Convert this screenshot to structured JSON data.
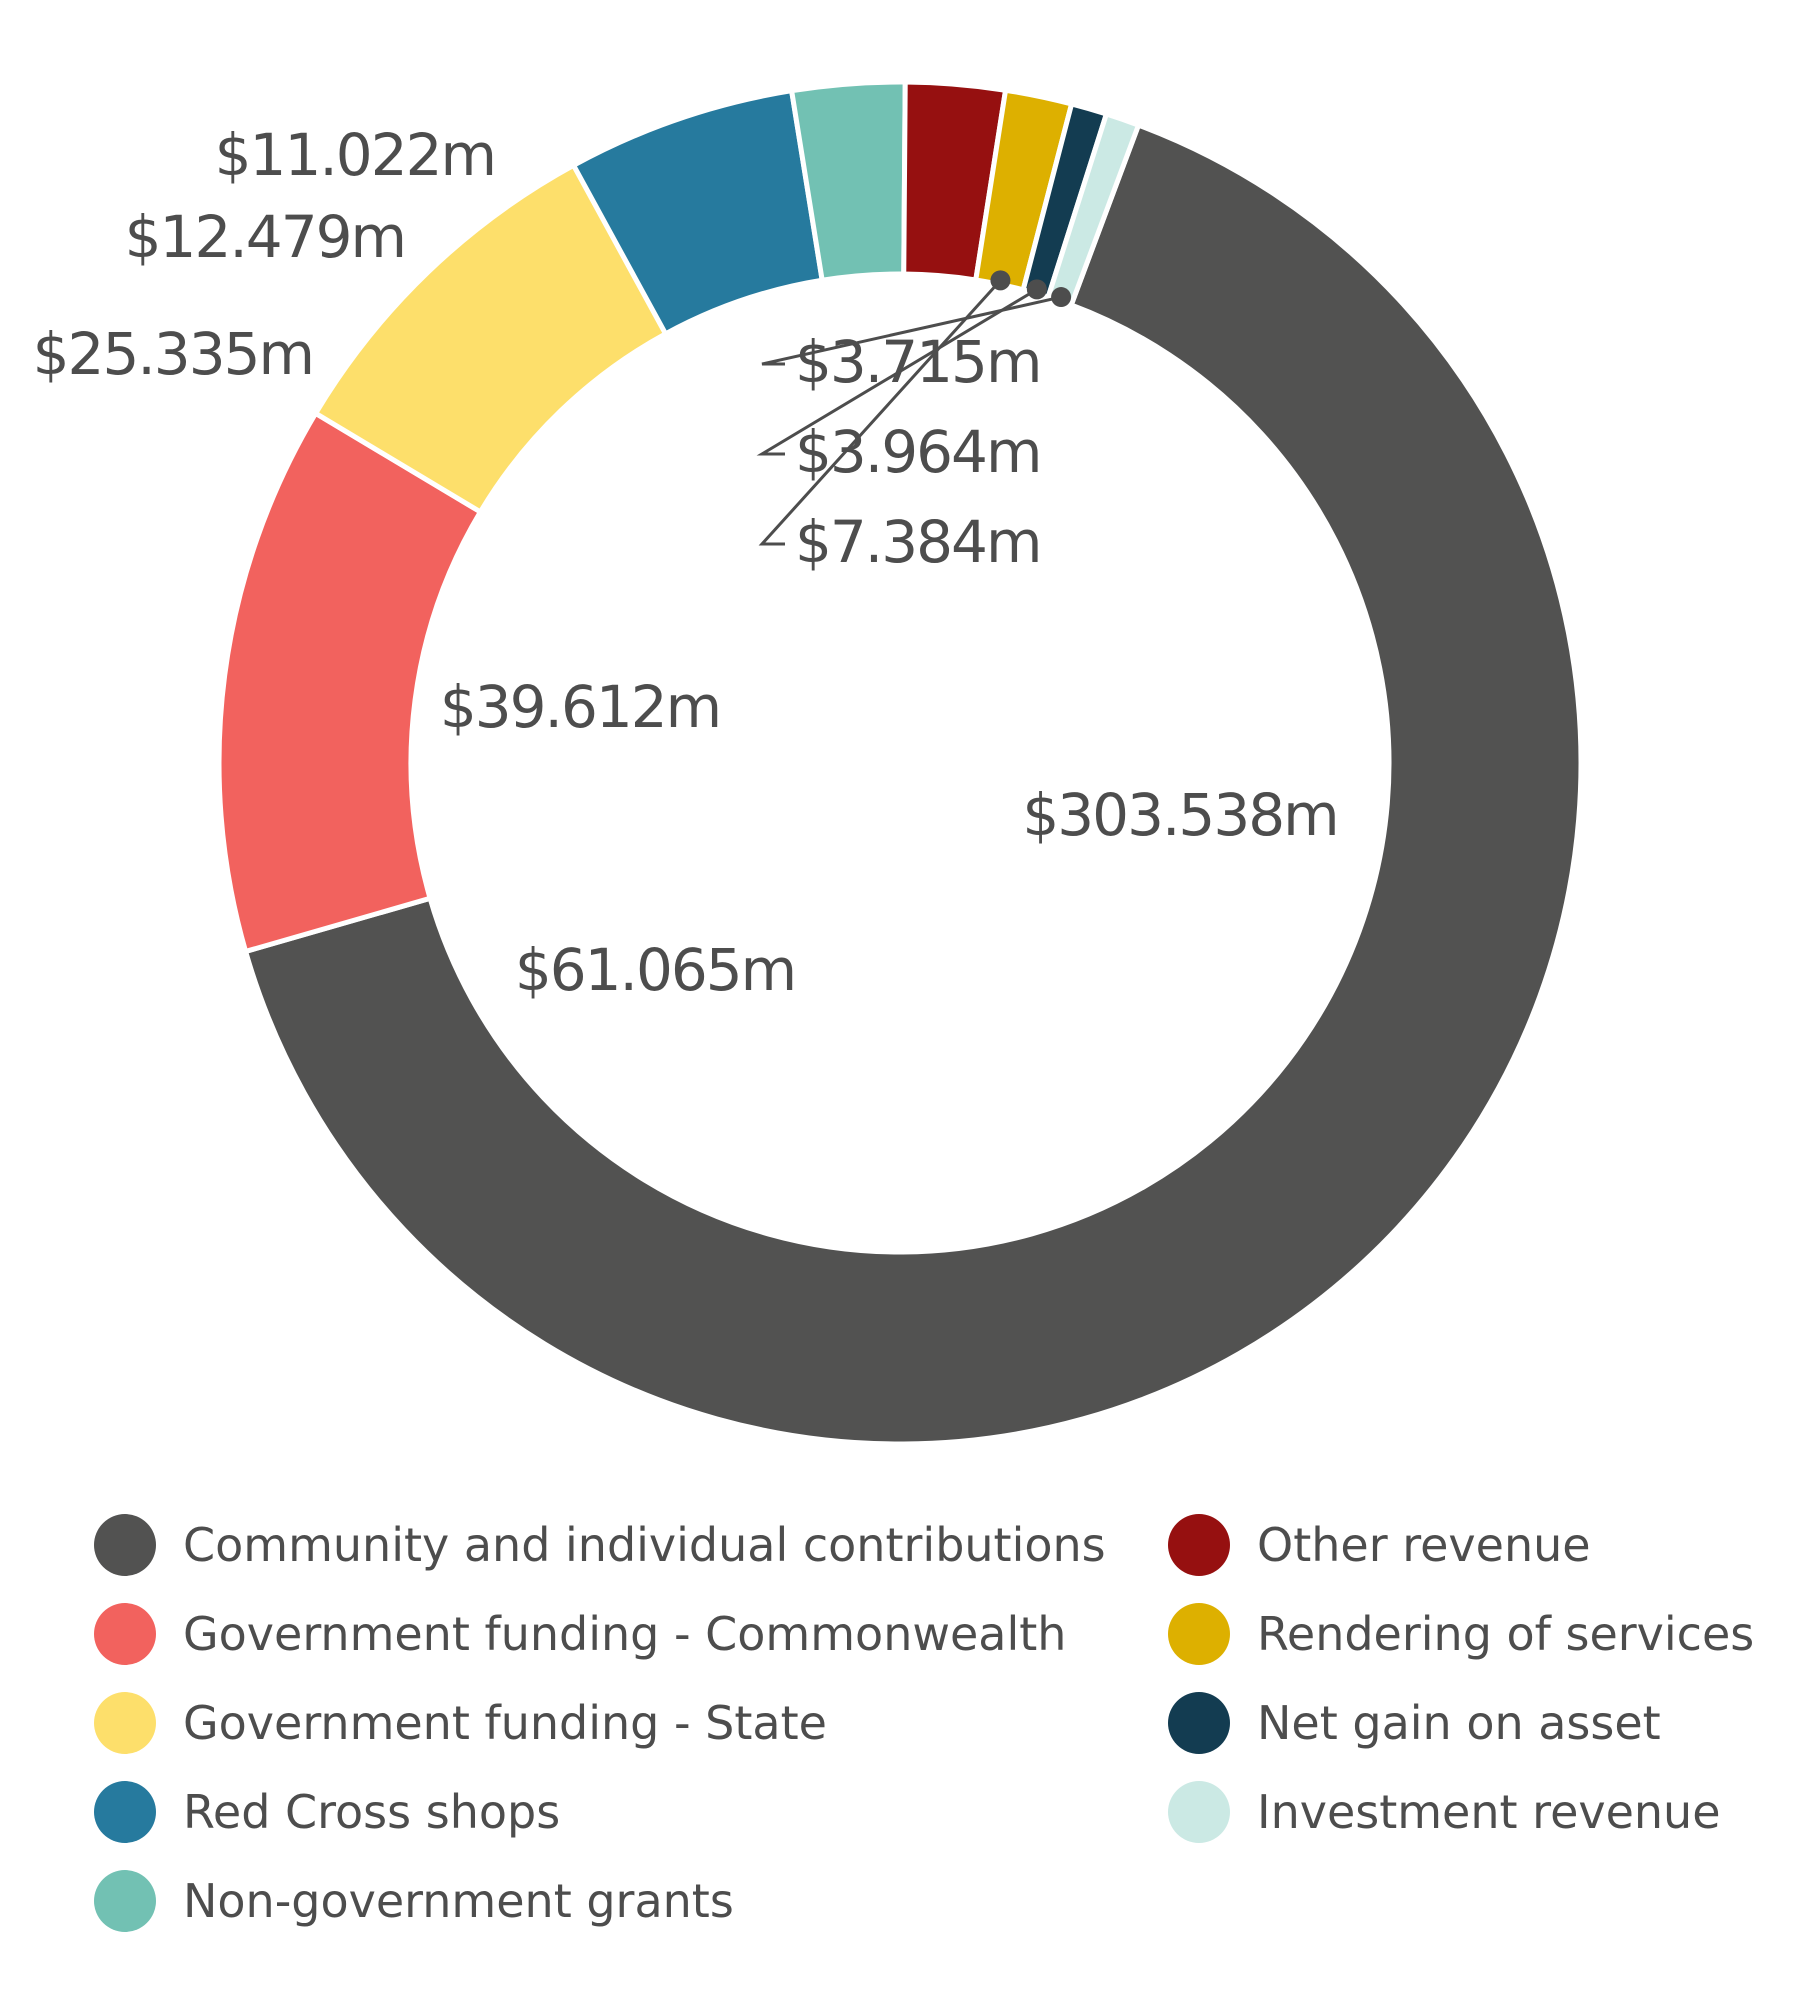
{
  "chart_data": {
    "type": "pie",
    "legend_position": "bottom",
    "slices": [
      {
        "name": "Community and individual contributions",
        "value": 303.538,
        "label": "$303.538m",
        "color": "#525251"
      },
      {
        "name": "Government funding - Commonwealth",
        "value": 61.065,
        "label": "$61.065m",
        "color": "#f2625e"
      },
      {
        "name": "Government funding - State",
        "value": 39.612,
        "label": "$39.612m",
        "color": "#fddf6b"
      },
      {
        "name": "Red Cross shops",
        "value": 25.335,
        "label": "$25.335m",
        "color": "#267a9e"
      },
      {
        "name": "Non-government grants",
        "value": 12.479,
        "label": "$12.479m",
        "color": "#72c1b3"
      },
      {
        "name": "Other revenue",
        "value": 11.022,
        "label": "$11.022m",
        "color": "#961010"
      },
      {
        "name": "Rendering of services",
        "value": 7.384,
        "label": "$7.384m",
        "color": "#ddb000"
      },
      {
        "name": "Net gain on asset",
        "value": 3.964,
        "label": "$3.964m",
        "color": "#133c51"
      },
      {
        "name": "Investment revenue",
        "value": 3.715,
        "label": "$3.715m",
        "color": "#cbe9e4"
      }
    ]
  }
}
